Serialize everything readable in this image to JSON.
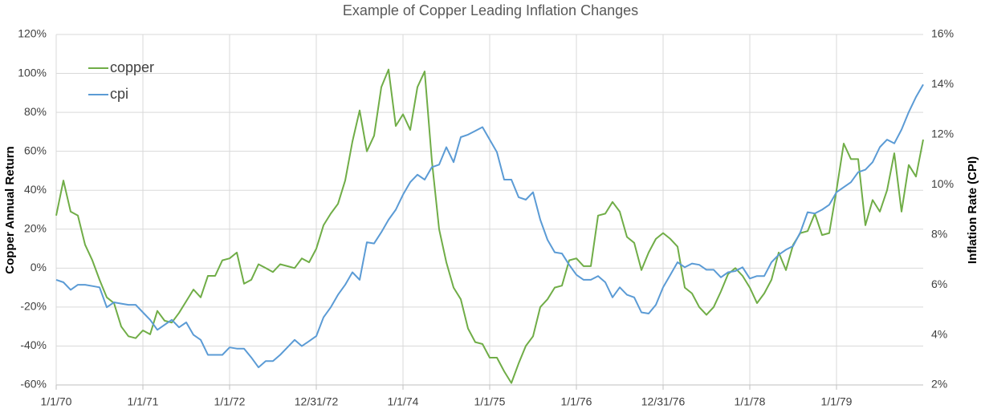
{
  "chart_data": {
    "type": "line",
    "title": "Example of Copper Leading Inflation Changes",
    "y_label": "Copper Annual Return",
    "y2_label": "Inflation Rate (CPI)",
    "categories": [
      "1/1/70",
      null,
      null,
      null,
      null,
      null,
      null,
      null,
      null,
      null,
      null,
      null,
      "1/1/71",
      null,
      null,
      null,
      null,
      null,
      null,
      null,
      null,
      null,
      null,
      null,
      "1/1/72",
      null,
      null,
      null,
      null,
      null,
      null,
      null,
      null,
      null,
      null,
      null,
      "12/31/72",
      null,
      null,
      null,
      null,
      null,
      null,
      null,
      null,
      null,
      null,
      null,
      "1/1/74",
      null,
      null,
      null,
      null,
      null,
      null,
      null,
      null,
      null,
      null,
      null,
      "1/1/75",
      null,
      null,
      null,
      null,
      null,
      null,
      null,
      null,
      null,
      null,
      null,
      "1/1/76",
      null,
      null,
      null,
      null,
      null,
      null,
      null,
      null,
      null,
      null,
      null,
      "12/31/76",
      null,
      null,
      null,
      null,
      null,
      null,
      null,
      null,
      null,
      null,
      null,
      "1/1/78",
      null,
      null,
      null,
      null,
      null,
      null,
      null,
      null,
      null,
      null,
      null,
      "1/1/79",
      null,
      null,
      null,
      null,
      null,
      null,
      null,
      null,
      null,
      null,
      null,
      null
    ],
    "series": [
      {
        "name": "copper",
        "color": "#70ad47",
        "values": [
          27,
          45,
          29,
          27,
          12,
          4,
          -6,
          -15,
          -18,
          -30,
          -35,
          -36,
          -32,
          -34,
          -22,
          -27,
          -28,
          -23,
          -17,
          -11,
          -15,
          -4,
          -4,
          4,
          5,
          8,
          -8,
          -6,
          2,
          0,
          -2,
          2,
          1,
          0,
          5,
          3,
          10,
          22,
          28,
          33,
          45,
          65,
          81,
          60,
          68,
          93,
          102,
          73,
          79,
          71,
          93,
          101,
          55,
          20,
          3,
          -10,
          -16,
          -31,
          -38,
          -39,
          -46,
          -46,
          -53,
          -59,
          -49,
          -40,
          -35,
          -20,
          -16,
          -10,
          -9,
          4,
          5,
          1,
          1,
          27,
          28,
          34,
          29,
          16,
          13,
          -1,
          8,
          15,
          18,
          15,
          11,
          -10,
          -13,
          -20,
          -24,
          -20,
          -12,
          -3,
          0,
          -4,
          -10,
          -18,
          -13,
          -6,
          8,
          -1,
          12,
          18,
          19,
          28,
          17,
          18,
          40,
          64,
          56,
          56,
          22,
          35,
          29,
          40,
          59,
          29,
          53,
          47,
          66
        ]
      },
      {
        "name": "cpi",
        "color": "#5b9bd5",
        "axis": "y2",
        "values": [
          6.2,
          6.1,
          5.8,
          6.0,
          6.0,
          5.95,
          5.9,
          5.1,
          5.3,
          5.25,
          5.2,
          5.2,
          4.9,
          4.6,
          4.2,
          4.4,
          4.6,
          4.3,
          4.5,
          4.0,
          3.8,
          3.2,
          3.2,
          3.2,
          3.5,
          3.45,
          3.45,
          3.1,
          2.7,
          2.95,
          2.95,
          3.2,
          3.5,
          3.8,
          3.55,
          3.75,
          3.95,
          4.7,
          5.1,
          5.6,
          6.0,
          6.5,
          6.2,
          7.7,
          7.65,
          8.1,
          8.6,
          9.0,
          9.6,
          10.1,
          10.4,
          10.2,
          10.7,
          10.8,
          11.5,
          10.9,
          11.9,
          12.0,
          12.15,
          12.3,
          11.8,
          11.3,
          10.2,
          10.2,
          9.5,
          9.4,
          9.7,
          8.6,
          7.8,
          7.3,
          7.25,
          6.8,
          6.4,
          6.2,
          6.2,
          6.35,
          6.1,
          5.5,
          5.9,
          5.6,
          5.5,
          4.9,
          4.85,
          5.2,
          5.9,
          6.4,
          6.9,
          6.7,
          6.85,
          6.8,
          6.6,
          6.6,
          6.3,
          6.5,
          6.55,
          6.7,
          6.25,
          6.35,
          6.35,
          6.9,
          7.2,
          7.4,
          7.55,
          8.1,
          8.9,
          8.85,
          9.0,
          9.2,
          9.7,
          9.9,
          10.1,
          10.5,
          10.6,
          10.9,
          11.5,
          11.8,
          11.65,
          12.2,
          12.9,
          13.5,
          14.0
        ]
      }
    ],
    "ylim": [
      -60,
      120
    ],
    "yticks": [
      {
        "value": -60,
        "label": "-60%"
      },
      {
        "value": -40,
        "label": "-40%"
      },
      {
        "value": -20,
        "label": "-20%"
      },
      {
        "value": 0,
        "label": "0%"
      },
      {
        "value": 20,
        "label": "20%"
      },
      {
        "value": 40,
        "label": "40%"
      },
      {
        "value": 60,
        "label": "60%"
      },
      {
        "value": 80,
        "label": "80%"
      },
      {
        "value": 100,
        "label": "100%"
      },
      {
        "value": 120,
        "label": "120%"
      }
    ],
    "y2lim": [
      2,
      16
    ],
    "y2ticks": [
      {
        "value": 2,
        "label": "2%"
      },
      {
        "value": 4,
        "label": "4%"
      },
      {
        "value": 6,
        "label": "6%"
      },
      {
        "value": 8,
        "label": "8%"
      },
      {
        "value": 10,
        "label": "10%"
      },
      {
        "value": 12,
        "label": "12%"
      },
      {
        "value": 14,
        "label": "14%"
      },
      {
        "value": 16,
        "label": "16%"
      }
    ],
    "grid": true,
    "legend": "upper-left"
  }
}
